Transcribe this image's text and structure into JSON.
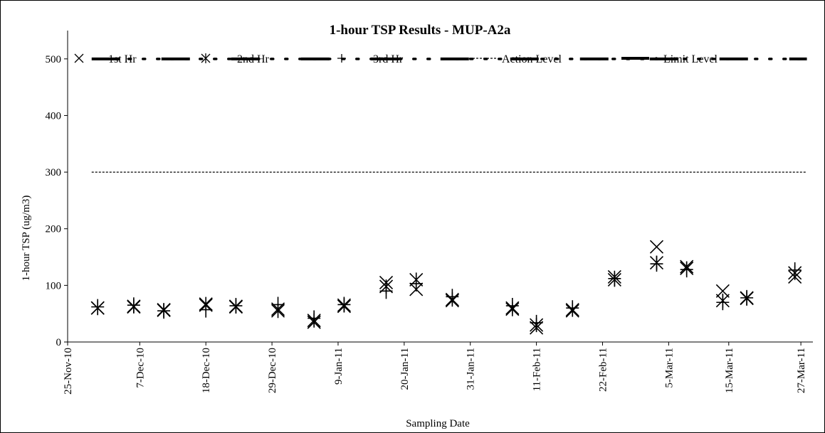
{
  "chart_data": {
    "type": "scatter",
    "title": "1-hour TSP Results - MUP-A2a",
    "xlabel": "Sampling Date",
    "ylabel": "1-hour TSP (ug/m3)",
    "ylim": [
      0,
      550
    ],
    "yticks": [
      0,
      100,
      200,
      300,
      400,
      500
    ],
    "xlim": [
      "2010-11-25",
      "2011-03-29"
    ],
    "xticks": [
      {
        "date": "2010-11-25",
        "label": "25-Nov-10"
      },
      {
        "date": "2010-12-07",
        "label": "7-Dec-10"
      },
      {
        "date": "2010-12-18",
        "label": "18-Dec-10"
      },
      {
        "date": "2010-12-29",
        "label": "29-Dec-10"
      },
      {
        "date": "2011-01-09",
        "label": "9-Jan-11"
      },
      {
        "date": "2011-01-20",
        "label": "20-Jan-11"
      },
      {
        "date": "2011-01-31",
        "label": "31-Jan-11"
      },
      {
        "date": "2011-02-11",
        "label": "11-Feb-11"
      },
      {
        "date": "2011-02-22",
        "label": "22-Feb-11"
      },
      {
        "date": "2011-03-05",
        "label": "5-Mar-11"
      },
      {
        "date": "2011-03-15",
        "label": "15-Mar-11"
      },
      {
        "date": "2011-03-27",
        "label": "27-Mar-11"
      }
    ],
    "grid": false,
    "legend_position": "top",
    "series": [
      {
        "name": "1st Hr",
        "marker": "x",
        "x": [
          "2010-11-30",
          "2010-12-06",
          "2010-12-11",
          "2010-12-18",
          "2010-12-23",
          "2010-12-30",
          "2011-01-05",
          "2011-01-10",
          "2011-01-17",
          "2011-01-22",
          "2011-01-28",
          "2011-02-07",
          "2011-02-11",
          "2011-02-17",
          "2011-02-24",
          "2011-03-03",
          "2011-03-08",
          "2011-03-14",
          "2011-03-18",
          "2011-03-26"
        ],
        "y": [
          60,
          62,
          57,
          65,
          62,
          58,
          35,
          63,
          105,
          93,
          73,
          60,
          25,
          55,
          115,
          168,
          133,
          90,
          78,
          115
        ]
      },
      {
        "name": "2nd Hr",
        "marker": "asterisk",
        "x": [
          "2010-11-30",
          "2010-12-06",
          "2010-12-11",
          "2010-12-18",
          "2010-12-23",
          "2010-12-30",
          "2011-01-05",
          "2011-01-10",
          "2011-01-17",
          "2011-01-22",
          "2011-01-28",
          "2011-02-07",
          "2011-02-11",
          "2011-02-17",
          "2011-02-24",
          "2011-03-03",
          "2011-03-08",
          "2011-03-14",
          "2011-03-18",
          "2011-03-26"
        ],
        "y": [
          60,
          63,
          56,
          67,
          63,
          55,
          38,
          65,
          98,
          110,
          75,
          58,
          30,
          57,
          110,
          140,
          130,
          73,
          77,
          122
        ]
      },
      {
        "name": "3rd Hr",
        "marker": "plus",
        "x": [
          "2010-11-30",
          "2010-12-06",
          "2010-12-11",
          "2010-12-18",
          "2010-12-23",
          "2010-12-30",
          "2011-01-05",
          "2011-01-10",
          "2011-01-17",
          "2011-01-22",
          "2011-01-28",
          "2011-02-07",
          "2011-02-11",
          "2011-02-17",
          "2011-02-24",
          "2011-03-03",
          "2011-03-08",
          "2011-03-14",
          "2011-03-18",
          "2011-03-26"
        ],
        "y": [
          62,
          65,
          55,
          57,
          64,
          66,
          42,
          66,
          90,
          103,
          80,
          64,
          34,
          60,
          112,
          138,
          128,
          70,
          78,
          127
        ]
      }
    ],
    "reference_lines": [
      {
        "name": "Action Level",
        "y": 300,
        "style": "dashed"
      },
      {
        "name": "Limit Level",
        "y": 500,
        "style": "dash-dot"
      }
    ]
  }
}
